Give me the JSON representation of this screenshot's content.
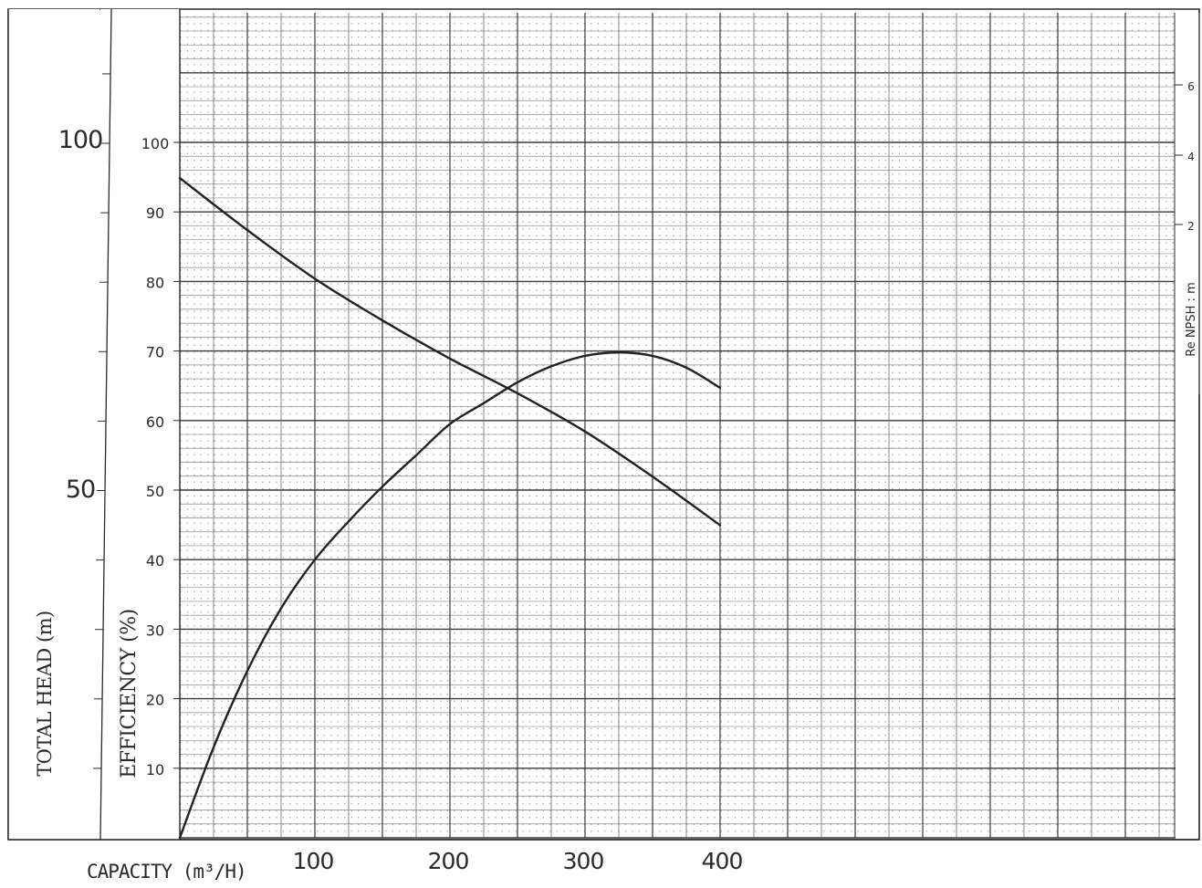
{
  "chart_data": {
    "type": "line",
    "title": "",
    "xlabel": "CAPACITY (m³/H)",
    "x_ticks": [
      "100",
      "200",
      "300",
      "400"
    ],
    "xlim": [
      0,
      400
    ],
    "axes": {
      "head": {
        "label": "TOTAL HEAD (m)",
        "ticks": [
          "100",
          "50"
        ],
        "ylim": [
          0,
          120
        ]
      },
      "efficiency": {
        "label": "EFFICIENCY (%)",
        "ticks": [
          "100",
          "90",
          "80",
          "70",
          "60",
          "50",
          "40",
          "30",
          "20",
          "10"
        ],
        "ylim": [
          0,
          100
        ]
      },
      "npsh": {
        "label": "Re NPSH : m",
        "ticks": [
          "6",
          "4",
          "2"
        ]
      }
    },
    "grid": true,
    "series": [
      {
        "axis": "efficiency",
        "x": [
          0,
          25,
          50,
          75,
          100,
          125,
          150,
          175,
          200,
          225,
          250,
          275,
          300,
          325,
          350,
          375,
          400
        ],
        "y": [
          0,
          13,
          24,
          33,
          40,
          45.5,
          50.5,
          55,
          59.5,
          62.5,
          65.5,
          67.8,
          69.3,
          69.8,
          69.3,
          67.6,
          64.7
        ]
      },
      {
        "axis": "head",
        "x": [
          0,
          50,
          100,
          150,
          200,
          250,
          300,
          350,
          400
        ],
        "y": [
          95,
          87.5,
          80.5,
          74.5,
          69,
          64,
          58.5,
          52,
          45
        ]
      }
    ]
  }
}
